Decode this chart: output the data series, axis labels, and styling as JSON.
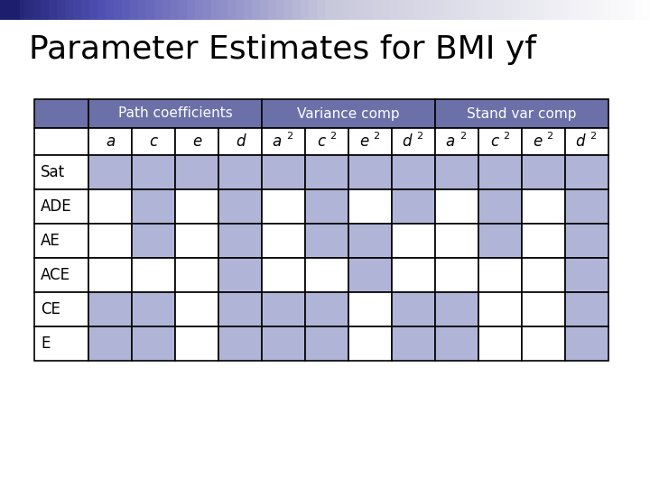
{
  "title": "Parameter Estimates for BMI yf",
  "title_fontsize": 26,
  "cell_colors": {
    "Sat": [
      1,
      1,
      1,
      1,
      1,
      1,
      1,
      1,
      1,
      1,
      1,
      1
    ],
    "ADE": [
      0,
      1,
      0,
      1,
      0,
      1,
      0,
      1,
      0,
      1,
      0,
      1
    ],
    "AE": [
      0,
      1,
      0,
      1,
      0,
      1,
      1,
      0,
      0,
      1,
      0,
      1
    ],
    "ACE": [
      0,
      0,
      0,
      1,
      0,
      0,
      1,
      0,
      0,
      0,
      0,
      1
    ],
    "CE": [
      1,
      1,
      0,
      1,
      1,
      1,
      0,
      1,
      1,
      0,
      0,
      1
    ],
    "E": [
      1,
      1,
      0,
      1,
      1,
      1,
      0,
      1,
      1,
      0,
      0,
      1
    ]
  },
  "row_labels": [
    "Sat",
    "ADE",
    "AE",
    "ACE",
    "CE",
    "E"
  ],
  "col_labels": [
    "a",
    "c",
    "e",
    "d",
    "a",
    "c",
    "e",
    "d",
    "a",
    "c",
    "e",
    "d"
  ],
  "col_sups": [
    null,
    null,
    null,
    null,
    "2",
    "2",
    "2",
    "2",
    "2",
    "2",
    "2",
    "2"
  ],
  "group_headers": [
    "Path coefficients",
    "Variance comp",
    "Stand var comp"
  ],
  "blue_light": "#b0b5d8",
  "header_bg": "#6b70a8",
  "header_fg": "#ffffff",
  "white": "#ffffff",
  "black": "#000000",
  "bg": "#ffffff",
  "table_fontsize": 12,
  "header_fontsize": 11,
  "border_lw": 1.2
}
